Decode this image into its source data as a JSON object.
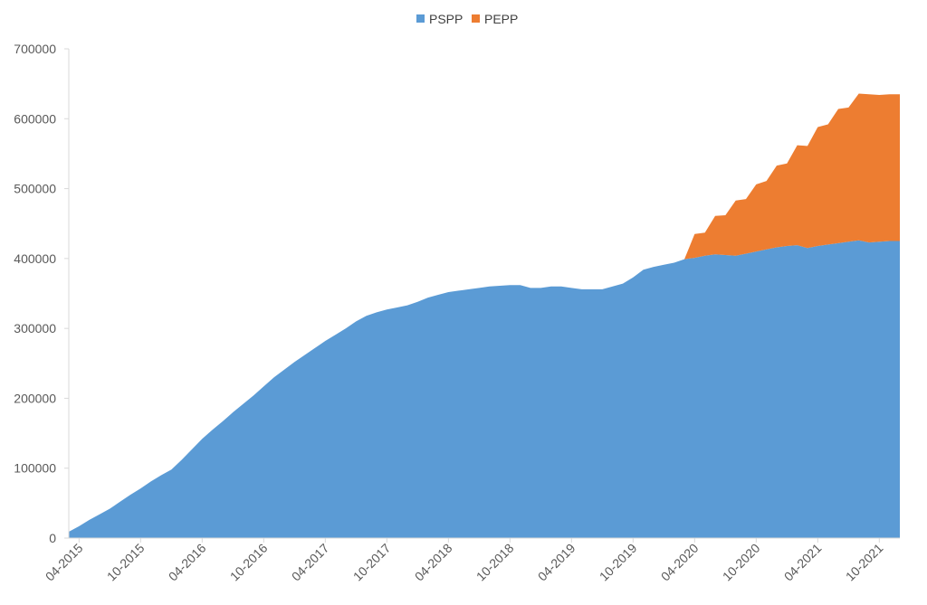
{
  "chart_data": {
    "type": "area",
    "stacked": true,
    "title": "",
    "xlabel": "",
    "ylabel": "",
    "ylim": [
      0,
      700000
    ],
    "yticks": [
      "0",
      "100000",
      "200000",
      "300000",
      "400000",
      "500000",
      "600000",
      "700000"
    ],
    "xticks": [
      "04-2015",
      "10-2015",
      "04-2016",
      "10-2016",
      "04-2017",
      "10-2017",
      "04-2018",
      "10-2018",
      "04-2019",
      "10-2019",
      "04-2020",
      "10-2020",
      "04-2021",
      "10-2021"
    ],
    "grid": false,
    "legend_position": "top",
    "x": [
      "03-2015",
      "04-2015",
      "05-2015",
      "06-2015",
      "07-2015",
      "08-2015",
      "09-2015",
      "10-2015",
      "11-2015",
      "12-2015",
      "01-2016",
      "02-2016",
      "03-2016",
      "04-2016",
      "05-2016",
      "06-2016",
      "07-2016",
      "08-2016",
      "09-2016",
      "10-2016",
      "11-2016",
      "12-2016",
      "01-2017",
      "02-2017",
      "03-2017",
      "04-2017",
      "05-2017",
      "06-2017",
      "07-2017",
      "08-2017",
      "09-2017",
      "10-2017",
      "11-2017",
      "12-2017",
      "01-2018",
      "02-2018",
      "03-2018",
      "04-2018",
      "05-2018",
      "06-2018",
      "07-2018",
      "08-2018",
      "09-2018",
      "10-2018",
      "11-2018",
      "12-2018",
      "01-2019",
      "02-2019",
      "03-2019",
      "04-2019",
      "05-2019",
      "06-2019",
      "07-2019",
      "08-2019",
      "09-2019",
      "10-2019",
      "11-2019",
      "12-2019",
      "01-2020",
      "02-2020",
      "03-2020",
      "04-2020",
      "05-2020",
      "06-2020",
      "07-2020",
      "08-2020",
      "09-2020",
      "10-2020",
      "11-2020",
      "12-2020",
      "01-2021",
      "02-2021",
      "03-2021",
      "04-2021",
      "05-2021",
      "06-2021",
      "07-2021",
      "08-2021",
      "09-2021",
      "10-2021",
      "11-2021",
      "12-2021"
    ],
    "series": [
      {
        "name": "PSPP",
        "color": "#5b9bd5",
        "values": [
          9000,
          17000,
          26000,
          34000,
          42000,
          52000,
          62000,
          71000,
          81000,
          90000,
          98000,
          112000,
          127000,
          142000,
          155000,
          167000,
          180000,
          192000,
          204000,
          217000,
          230000,
          241000,
          252000,
          262000,
          272000,
          282000,
          291000,
          300000,
          310000,
          318000,
          323000,
          327000,
          330000,
          333000,
          338000,
          344000,
          348000,
          352000,
          354000,
          356000,
          358000,
          360000,
          361000,
          362000,
          362000,
          358000,
          358000,
          360000,
          360000,
          358000,
          356000,
          356000,
          356000,
          360000,
          364000,
          373000,
          384000,
          388000,
          391000,
          394000,
          399000,
          401000,
          404000,
          406000,
          405000,
          404000,
          407000,
          410000,
          413000,
          416000,
          418000,
          419000,
          415000,
          418000,
          420000,
          422000,
          424000,
          426000,
          423000,
          424000,
          425000,
          425000
        ]
      },
      {
        "name": "PEPP",
        "color": "#ed7d31",
        "values": [
          0,
          0,
          0,
          0,
          0,
          0,
          0,
          0,
          0,
          0,
          0,
          0,
          0,
          0,
          0,
          0,
          0,
          0,
          0,
          0,
          0,
          0,
          0,
          0,
          0,
          0,
          0,
          0,
          0,
          0,
          0,
          0,
          0,
          0,
          0,
          0,
          0,
          0,
          0,
          0,
          0,
          0,
          0,
          0,
          0,
          0,
          0,
          0,
          0,
          0,
          0,
          0,
          0,
          0,
          0,
          0,
          0,
          0,
          0,
          0,
          0,
          34000,
          33000,
          55000,
          57000,
          79000,
          78000,
          96000,
          98000,
          117000,
          118000,
          143000,
          146000,
          170000,
          172000,
          192000,
          192000,
          210000,
          212000,
          210000,
          210000,
          210000
        ]
      }
    ]
  }
}
